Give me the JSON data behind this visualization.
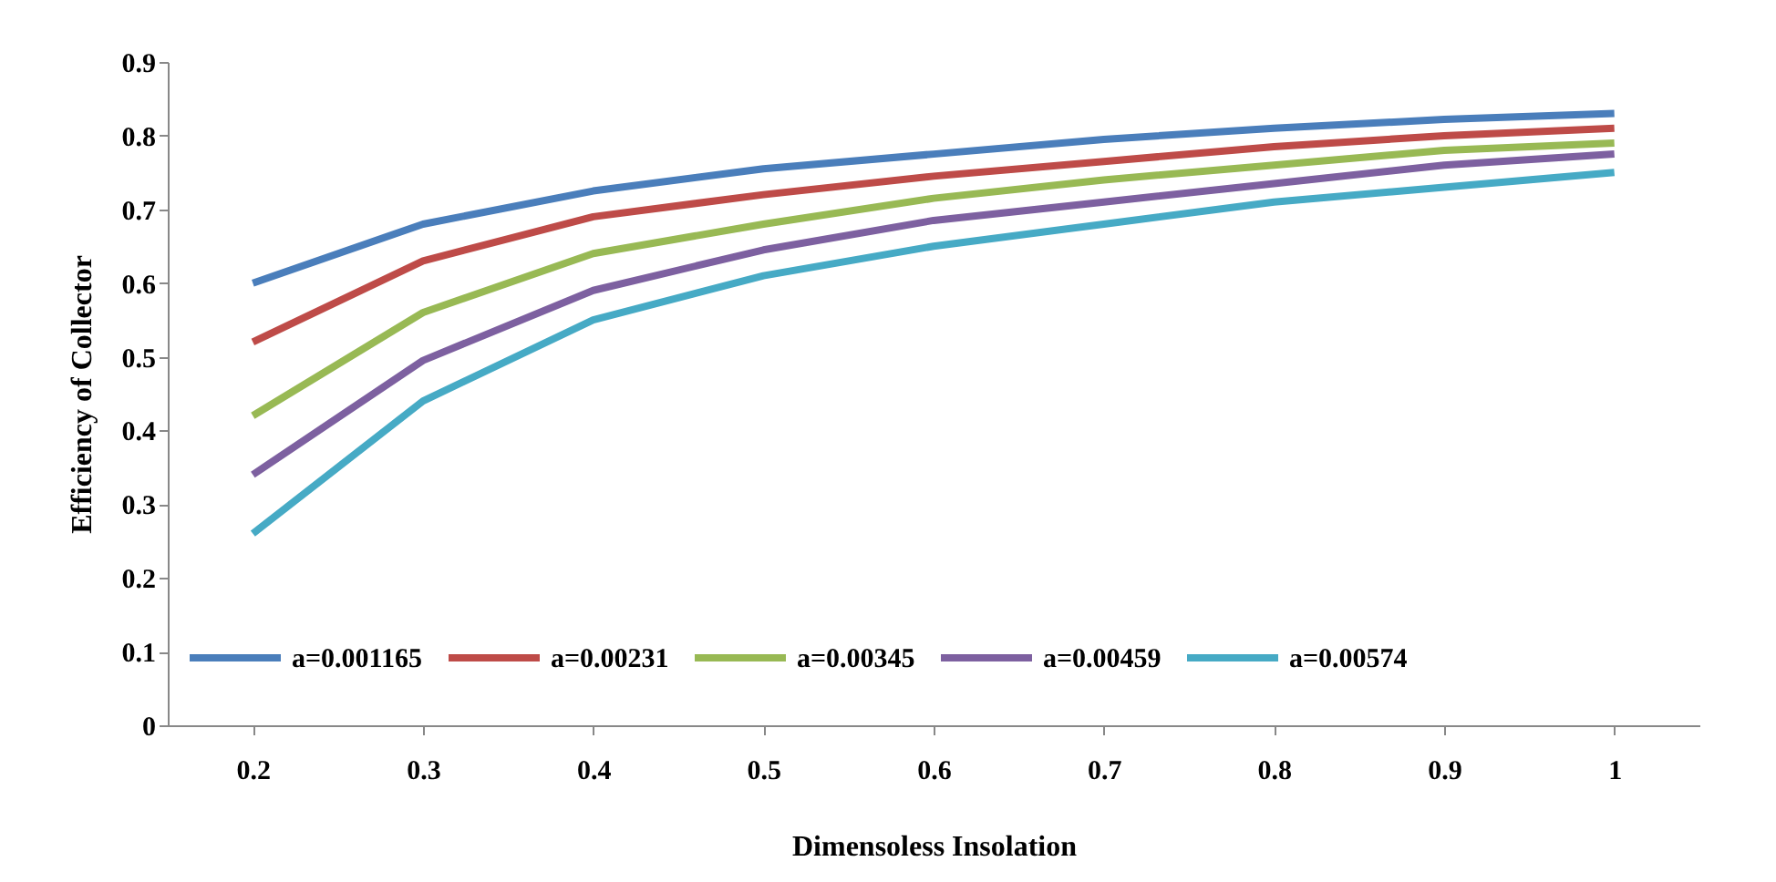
{
  "chart_data": {
    "type": "line",
    "xlabel": "Dimensoless Insolation",
    "ylabel": "Efficiency of Collector",
    "categories": [
      "0.2",
      "0.3",
      "0.4",
      "0.5",
      "0.6",
      "0.7",
      "0.8",
      "0.9",
      "1"
    ],
    "ylim": [
      0,
      0.9
    ],
    "yticks": [
      0,
      0.1,
      0.2,
      0.3,
      0.4,
      0.5,
      0.6,
      0.7,
      0.8,
      0.9
    ],
    "legend": "bottom",
    "series": [
      {
        "name": "a=0.001165",
        "color": "#4a7ebb",
        "values": [
          0.6,
          0.68,
          0.725,
          0.755,
          0.775,
          0.795,
          0.81,
          0.822,
          0.83
        ]
      },
      {
        "name": "a=0.00231",
        "color": "#be4b48",
        "values": [
          0.52,
          0.63,
          0.69,
          0.72,
          0.745,
          0.765,
          0.785,
          0.8,
          0.81
        ]
      },
      {
        "name": "a=0.00345",
        "color": "#98b954",
        "values": [
          0.42,
          0.56,
          0.64,
          0.68,
          0.715,
          0.74,
          0.76,
          0.78,
          0.79
        ]
      },
      {
        "name": "a=0.00459",
        "color": "#7d60a0",
        "values": [
          0.34,
          0.495,
          0.59,
          0.645,
          0.685,
          0.71,
          0.735,
          0.76,
          0.775
        ]
      },
      {
        "name": "a=0.00574",
        "color": "#46aac5",
        "values": [
          0.26,
          0.44,
          0.55,
          0.61,
          0.65,
          0.68,
          0.71,
          0.73,
          0.75
        ]
      }
    ]
  }
}
